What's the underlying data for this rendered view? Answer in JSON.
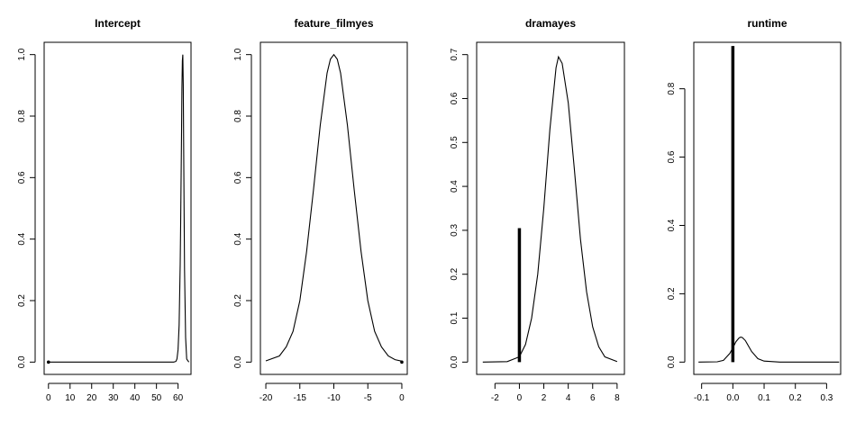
{
  "chart_data": [
    {
      "type": "line",
      "title": "Intercept",
      "xlim": [
        -2,
        66
      ],
      "ylim": [
        -0.04,
        1.04
      ],
      "xticks": [
        0,
        10,
        20,
        30,
        40,
        50,
        60
      ],
      "yticks": [
        0.0,
        0.2,
        0.4,
        0.6,
        0.8,
        1.0
      ],
      "xtick_labels": [
        "0",
        "10",
        "20",
        "30",
        "40",
        "50",
        "60"
      ],
      "ytick_labels": [
        "0.0",
        "0.2",
        "0.4",
        "0.6",
        "0.8",
        "1.0"
      ],
      "curve": {
        "x": [
          0,
          58,
          59,
          59.5,
          60,
          60.5,
          61,
          61.2,
          61.4,
          61.6,
          61.8,
          62,
          62.2,
          62.4,
          62.6,
          62.8,
          63,
          63.5,
          64,
          65
        ],
        "y": [
          0,
          0,
          0.002,
          0.01,
          0.04,
          0.12,
          0.32,
          0.45,
          0.6,
          0.75,
          0.89,
          0.98,
          1.0,
          0.9,
          0.72,
          0.5,
          0.3,
          0.08,
          0.01,
          0
        ]
      },
      "spike": {
        "x": 0,
        "height": 0.0
      }
    },
    {
      "type": "line",
      "title": "feature_filmyes",
      "xlim": [
        -20.8,
        0.8
      ],
      "ylim": [
        -0.04,
        1.04
      ],
      "xticks": [
        -20,
        -15,
        -10,
        -5,
        0
      ],
      "yticks": [
        0.0,
        0.2,
        0.4,
        0.6,
        0.8,
        1.0
      ],
      "xtick_labels": [
        "-20",
        "-15",
        "-10",
        "-5",
        "0"
      ],
      "ytick_labels": [
        "0.0",
        "0.2",
        "0.4",
        "0.6",
        "0.8",
        "1.0"
      ],
      "curve": {
        "x": [
          -20,
          -18,
          -17,
          -16,
          -15,
          -14,
          -13,
          -12,
          -11,
          -10.5,
          -10,
          -9.5,
          -9,
          -8,
          -7,
          -6,
          -5,
          -4,
          -3,
          -2,
          -1,
          0
        ],
        "y": [
          0.004,
          0.02,
          0.05,
          0.1,
          0.2,
          0.36,
          0.56,
          0.77,
          0.94,
          0.985,
          1.0,
          0.985,
          0.94,
          0.77,
          0.56,
          0.36,
          0.2,
          0.1,
          0.05,
          0.02,
          0.008,
          0.003
        ]
      },
      "spike": {
        "x": 0,
        "height": 0.0
      }
    },
    {
      "type": "line",
      "title": "dramayes",
      "xlim": [
        -3.5,
        8.6
      ],
      "ylim": [
        -0.028,
        0.728
      ],
      "xticks": [
        -2,
        0,
        2,
        4,
        6,
        8
      ],
      "yticks": [
        0.0,
        0.1,
        0.2,
        0.3,
        0.4,
        0.5,
        0.6,
        0.7
      ],
      "xtick_labels": [
        "-2",
        "0",
        "2",
        "4",
        "6",
        "8"
      ],
      "ytick_labels": [
        "0.0",
        "0.1",
        "0.2",
        "0.3",
        "0.4",
        "0.5",
        "0.6",
        "0.7"
      ],
      "curve": {
        "x": [
          -3,
          -1,
          0,
          0.5,
          1,
          1.5,
          2,
          2.5,
          3,
          3.2,
          3.5,
          4,
          4.5,
          5,
          5.5,
          6,
          6.5,
          7,
          8
        ],
        "y": [
          0,
          0.001,
          0.012,
          0.04,
          0.1,
          0.2,
          0.35,
          0.53,
          0.67,
          0.695,
          0.68,
          0.59,
          0.44,
          0.28,
          0.16,
          0.08,
          0.035,
          0.012,
          0.001
        ]
      },
      "spike": {
        "x": 0,
        "height": 0.305
      }
    },
    {
      "type": "line",
      "title": "runtime",
      "xlim": [
        -0.125,
        0.345
      ],
      "ylim": [
        -0.036,
        0.936
      ],
      "xticks": [
        -0.1,
        0.0,
        0.1,
        0.2,
        0.3
      ],
      "yticks": [
        0.0,
        0.2,
        0.4,
        0.6,
        0.8
      ],
      "xtick_labels": [
        "-0.1",
        "0.0",
        "0.1",
        "0.2",
        "0.3"
      ],
      "ytick_labels": [
        "0.0",
        "0.2",
        "0.4",
        "0.6",
        "0.8"
      ],
      "curve": {
        "x": [
          -0.11,
          -0.05,
          -0.03,
          -0.01,
          0.0,
          0.01,
          0.02,
          0.025,
          0.03,
          0.04,
          0.05,
          0.06,
          0.08,
          0.1,
          0.15,
          0.34
        ],
        "y": [
          0,
          0.001,
          0.005,
          0.025,
          0.042,
          0.06,
          0.071,
          0.073,
          0.072,
          0.063,
          0.047,
          0.031,
          0.01,
          0.003,
          0,
          0
        ]
      },
      "spike": {
        "x": 0,
        "height": 0.925
      }
    }
  ]
}
